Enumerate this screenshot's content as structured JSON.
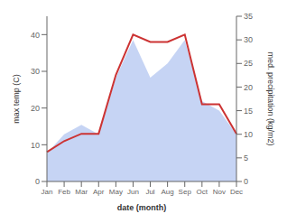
{
  "chart_data": {
    "type": "line",
    "categories": [
      "Jan",
      "Feb",
      "Mar",
      "Apr",
      "May",
      "Jun",
      "Jul",
      "Aug",
      "Sep",
      "Oct",
      "Nov",
      "Dec"
    ],
    "series": [
      {
        "type": "area",
        "color": "#b3c6f0",
        "axis": "y2",
        "values": [
          6,
          10,
          12,
          10,
          22,
          30,
          22,
          25,
          30,
          17,
          15,
          10
        ]
      },
      {
        "type": "line",
        "color": "#cc3333",
        "values": [
          8,
          11,
          13,
          13,
          29,
          40,
          38,
          38,
          40,
          21,
          21,
          13
        ]
      }
    ],
    "xlabel": "date (month)",
    "ylabel": "max temp (C)",
    "y2label": "med. precipitation (kg/m2)",
    "ylim": [
      0,
      45
    ],
    "yticks": [
      0,
      10,
      20,
      30,
      40
    ],
    "y2lim": [
      0,
      35
    ],
    "y2ticks": [
      0,
      5,
      10,
      15,
      20,
      25,
      30,
      35
    ]
  }
}
